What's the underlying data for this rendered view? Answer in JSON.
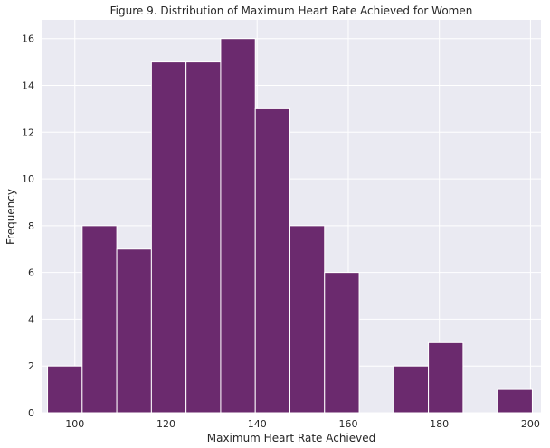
{
  "chart_data": {
    "type": "bar",
    "subtype": "histogram",
    "title": "Figure 9. Distribution of Maximum Heart Rate Achieved for Women",
    "xlabel": "Maximum Heart Rate Achieved",
    "ylabel": "Frequency",
    "xlim": [
      92.7,
      202.3
    ],
    "ylim": [
      0,
      16.8
    ],
    "x_ticks": [
      100,
      120,
      140,
      160,
      180,
      200
    ],
    "y_ticks": [
      0,
      2,
      4,
      6,
      8,
      10,
      12,
      14,
      16
    ],
    "bins": [
      {
        "x0": 94,
        "x1": 101.6,
        "count": 2
      },
      {
        "x0": 101.6,
        "x1": 109.2,
        "count": 8
      },
      {
        "x0": 109.2,
        "x1": 116.8,
        "count": 7
      },
      {
        "x0": 116.8,
        "x1": 124.4,
        "count": 15
      },
      {
        "x0": 124.4,
        "x1": 132.0,
        "count": 15
      },
      {
        "x0": 132.0,
        "x1": 139.6,
        "count": 16
      },
      {
        "x0": 139.6,
        "x1": 147.2,
        "count": 13
      },
      {
        "x0": 147.2,
        "x1": 154.8,
        "count": 8
      },
      {
        "x0": 154.8,
        "x1": 162.4,
        "count": 6
      },
      {
        "x0": 162.4,
        "x1": 170.0,
        "count": 0
      },
      {
        "x0": 170.0,
        "x1": 177.6,
        "count": 2
      },
      {
        "x0": 177.6,
        "x1": 185.2,
        "count": 3
      },
      {
        "x0": 185.2,
        "x1": 192.8,
        "count": 0
      },
      {
        "x0": 192.8,
        "x1": 200.4,
        "count": 1
      }
    ],
    "grid": true,
    "colors": {
      "bar": "#6b2a6e",
      "background": "#eaeaf2",
      "grid": "#ffffff"
    }
  }
}
